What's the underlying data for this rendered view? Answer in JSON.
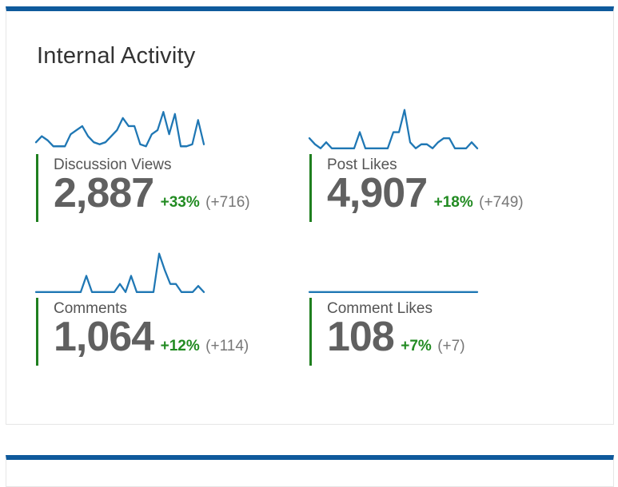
{
  "panel": {
    "title": "Internal Activity"
  },
  "colors": {
    "header_bar": "#0f5a9c",
    "sparkline": "#1f77b4",
    "stat_border": "#1f7f1f",
    "positive_change": "#228b22"
  },
  "metrics": [
    {
      "label": "Discussion Views",
      "value": "2,887",
      "change_pct": "+33%",
      "change_abs": "(+716)",
      "trend": [
        0.15,
        0.3,
        0.2,
        0.05,
        0.05,
        0.05,
        0.35,
        0.45,
        0.55,
        0.3,
        0.15,
        0.1,
        0.15,
        0.3,
        0.45,
        0.75,
        0.55,
        0.55,
        0.1,
        0.05,
        0.35,
        0.45,
        0.9,
        0.35,
        0.85,
        0.05,
        0.05,
        0.1,
        0.7,
        0.1
      ]
    },
    {
      "label": "Post Likes",
      "value": "4,907",
      "change_pct": "+18%",
      "change_abs": "(+749)",
      "trend": [
        0.25,
        0.1,
        0.0,
        0.15,
        0.0,
        0.0,
        0.0,
        0.0,
        0.0,
        0.4,
        0.0,
        0.0,
        0.0,
        0.0,
        0.0,
        0.4,
        0.4,
        0.95,
        0.15,
        0.0,
        0.1,
        0.1,
        0.0,
        0.15,
        0.25,
        0.25,
        0.0,
        0.0,
        0.0,
        0.15,
        0.0
      ]
    },
    {
      "label": "Comments",
      "value": "1,064",
      "change_pct": "+12%",
      "change_abs": "(+114)",
      "trend": [
        0.0,
        0.0,
        0.0,
        0.0,
        0.0,
        0.0,
        0.0,
        0.0,
        0.0,
        0.4,
        0.0,
        0.0,
        0.0,
        0.0,
        0.0,
        0.2,
        0.0,
        0.4,
        0.0,
        0.0,
        0.0,
        0.0,
        0.95,
        0.55,
        0.2,
        0.2,
        0.0,
        0.0,
        0.0,
        0.15,
        0.0
      ]
    },
    {
      "label": "Comment Likes",
      "value": "108",
      "change_pct": "+7%",
      "change_abs": "(+7)",
      "trend": [
        0.0,
        0.0,
        0.0,
        0.0,
        0.0,
        0.0,
        0.0,
        0.0,
        0.0,
        0.0,
        0.0,
        0.0,
        0.0,
        0.0,
        0.0,
        0.0,
        0.0,
        0.0,
        0.0,
        0.0,
        0.0,
        0.0,
        0.0,
        0.0,
        0.0,
        0.0,
        0.0,
        0.0,
        0.0,
        0.0,
        0.0
      ]
    }
  ]
}
